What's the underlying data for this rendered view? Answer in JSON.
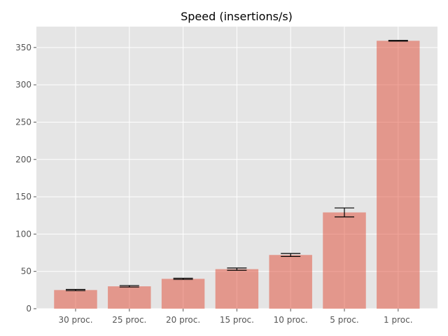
{
  "chart_data": {
    "type": "bar",
    "title": "Speed (insertions/s)",
    "xlabel": "",
    "ylabel": "",
    "categories": [
      "30 proc.",
      "25 proc.",
      "20 proc.",
      "15 proc.",
      "10 proc.",
      "5 proc.",
      "1 proc."
    ],
    "values": [
      25,
      30,
      40,
      53,
      72,
      129,
      359
    ],
    "errors": [
      0.8,
      1.0,
      0.8,
      1.5,
      2.0,
      6.0,
      0.5
    ],
    "ylim": [
      0,
      378
    ],
    "yticks": [
      0,
      50,
      100,
      150,
      200,
      250,
      300,
      350
    ],
    "grid": true,
    "colors": {
      "bar": "#E24A33",
      "bar_opacity": 0.5,
      "background": "#E5E5E5",
      "grid": "#FFFFFF",
      "errorbar": "#000000"
    }
  }
}
